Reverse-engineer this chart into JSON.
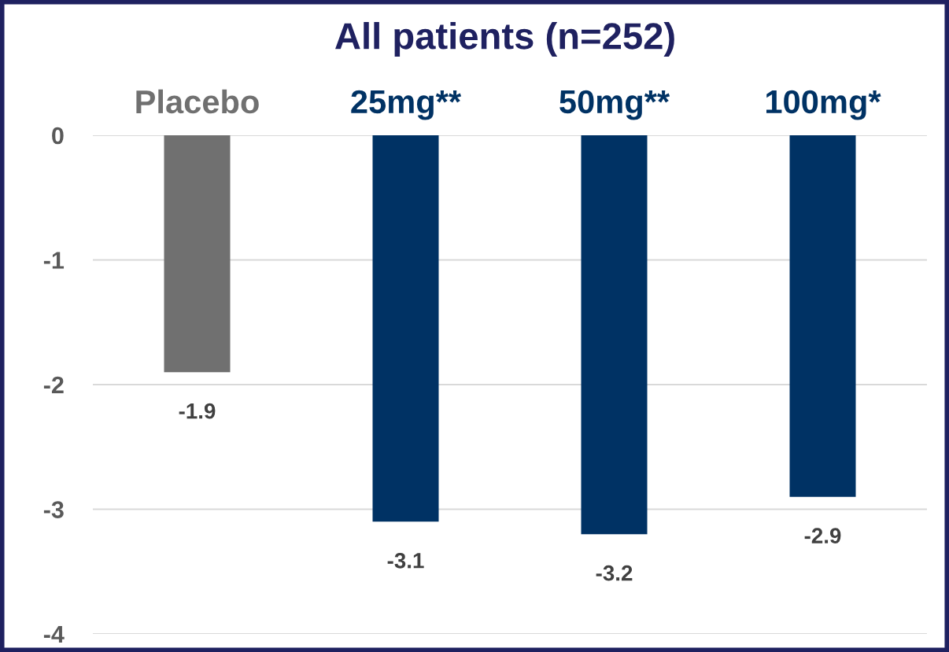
{
  "chart_data": {
    "type": "bar",
    "title": "All patients (n=252)",
    "categories": [
      "Placebo",
      "25mg**",
      "50mg**",
      "100mg*"
    ],
    "values": [
      -1.9,
      -3.1,
      -3.2,
      -2.9
    ],
    "colors": [
      "#707070",
      "#003264",
      "#003264",
      "#003264"
    ],
    "ylim": [
      -4,
      0
    ],
    "yticks": [
      -4,
      -3,
      -2,
      -1,
      0
    ],
    "grid": "y",
    "data_labels": true
  }
}
